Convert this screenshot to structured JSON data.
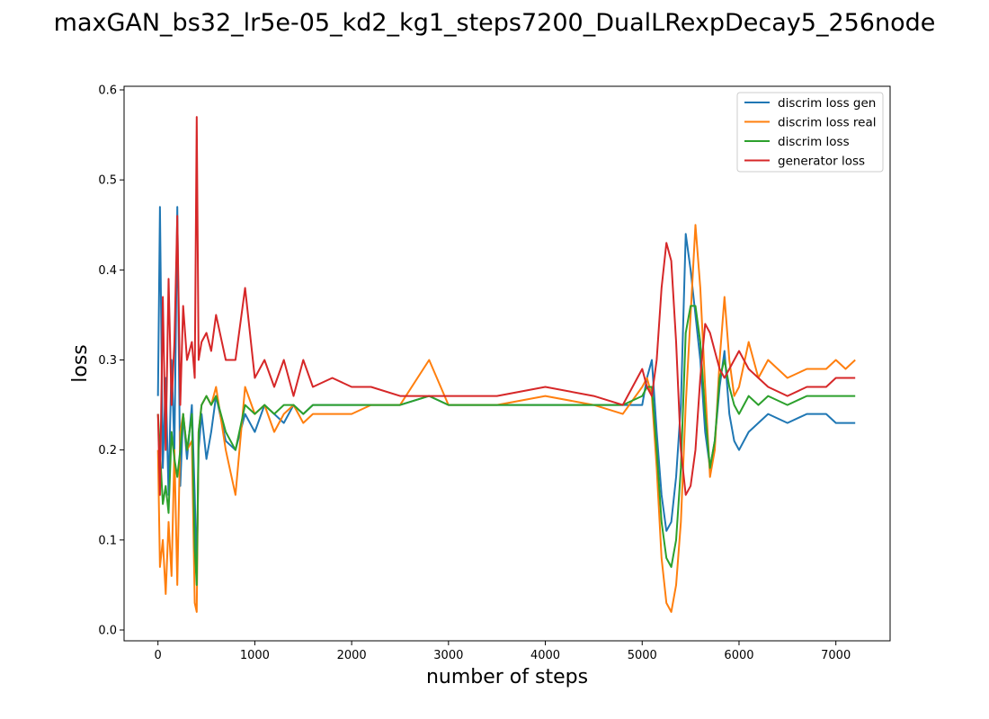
{
  "chart_data": {
    "type": "line",
    "title": "maxGAN_bs32_lr5e-05_kd2_kg1_steps7200_DualLRexpDecay5_256node",
    "xlabel": "number of steps",
    "ylabel": "loss",
    "xlim": [
      -350,
      7560
    ],
    "ylim": [
      -0.012,
      0.604
    ],
    "xticks": [
      0,
      1000,
      2000,
      3000,
      4000,
      5000,
      6000,
      7000
    ],
    "yticks": [
      0.0,
      0.1,
      0.2,
      0.3,
      0.4,
      0.5,
      0.6
    ],
    "ytick_labels": [
      "0.0",
      "0.1",
      "0.2",
      "0.3",
      "0.4",
      "0.5",
      "0.6"
    ],
    "grid": false,
    "legend_position": "top-right",
    "series": [
      {
        "name": "discrim loss gen",
        "color": "#1f77b4",
        "x": [
          0,
          20,
          50,
          80,
          110,
          140,
          170,
          200,
          230,
          260,
          300,
          350,
          380,
          400,
          420,
          450,
          500,
          550,
          600,
          700,
          800,
          900,
          1000,
          1100,
          1200,
          1300,
          1400,
          1500,
          1600,
          1800,
          2000,
          2200,
          2500,
          2800,
          3000,
          3500,
          4000,
          4500,
          4800,
          5000,
          5050,
          5100,
          5150,
          5200,
          5250,
          5300,
          5350,
          5400,
          5450,
          5500,
          5550,
          5600,
          5650,
          5700,
          5750,
          5800,
          5850,
          5900,
          5950,
          6000,
          6100,
          6200,
          6300,
          6500,
          6700,
          6900,
          7000,
          7100,
          7200
        ],
        "y": [
          0.26,
          0.47,
          0.18,
          0.28,
          0.15,
          0.3,
          0.2,
          0.47,
          0.16,
          0.24,
          0.19,
          0.25,
          0.15,
          0.06,
          0.2,
          0.24,
          0.19,
          0.22,
          0.26,
          0.21,
          0.2,
          0.24,
          0.22,
          0.25,
          0.24,
          0.23,
          0.25,
          0.24,
          0.25,
          0.25,
          0.25,
          0.25,
          0.25,
          0.26,
          0.25,
          0.25,
          0.25,
          0.25,
          0.25,
          0.25,
          0.28,
          0.3,
          0.22,
          0.15,
          0.11,
          0.12,
          0.17,
          0.25,
          0.44,
          0.4,
          0.35,
          0.3,
          0.22,
          0.18,
          0.21,
          0.27,
          0.31,
          0.24,
          0.21,
          0.2,
          0.22,
          0.23,
          0.24,
          0.23,
          0.24,
          0.24,
          0.23,
          0.23,
          0.23
        ]
      },
      {
        "name": "discrim loss real",
        "color": "#ff7f0e",
        "x": [
          0,
          20,
          50,
          80,
          110,
          140,
          170,
          200,
          230,
          260,
          300,
          350,
          380,
          400,
          420,
          450,
          500,
          550,
          600,
          700,
          800,
          900,
          1000,
          1100,
          1200,
          1300,
          1400,
          1500,
          1600,
          1800,
          2000,
          2200,
          2500,
          2800,
          3000,
          3500,
          4000,
          4500,
          4800,
          5000,
          5050,
          5100,
          5150,
          5200,
          5250,
          5300,
          5350,
          5400,
          5450,
          5500,
          5550,
          5600,
          5650,
          5700,
          5750,
          5800,
          5850,
          5900,
          5950,
          6000,
          6100,
          6200,
          6300,
          6500,
          6700,
          6900,
          7000,
          7100,
          7200
        ],
        "y": [
          0.2,
          0.07,
          0.1,
          0.04,
          0.12,
          0.06,
          0.2,
          0.05,
          0.22,
          0.24,
          0.2,
          0.21,
          0.03,
          0.02,
          0.22,
          0.25,
          0.26,
          0.25,
          0.27,
          0.2,
          0.15,
          0.27,
          0.24,
          0.25,
          0.22,
          0.24,
          0.25,
          0.23,
          0.24,
          0.24,
          0.24,
          0.25,
          0.25,
          0.3,
          0.25,
          0.25,
          0.26,
          0.25,
          0.24,
          0.27,
          0.28,
          0.26,
          0.18,
          0.08,
          0.03,
          0.02,
          0.05,
          0.12,
          0.25,
          0.35,
          0.45,
          0.38,
          0.27,
          0.17,
          0.2,
          0.3,
          0.37,
          0.3,
          0.26,
          0.27,
          0.32,
          0.28,
          0.3,
          0.28,
          0.29,
          0.29,
          0.3,
          0.29,
          0.3
        ]
      },
      {
        "name": "discrim loss",
        "color": "#2ca02c",
        "x": [
          0,
          20,
          50,
          80,
          110,
          140,
          170,
          200,
          230,
          260,
          300,
          350,
          380,
          400,
          420,
          450,
          500,
          550,
          600,
          700,
          800,
          900,
          1000,
          1100,
          1200,
          1300,
          1400,
          1500,
          1600,
          1800,
          2000,
          2200,
          2500,
          2800,
          3000,
          3500,
          4000,
          4500,
          4800,
          5000,
          5050,
          5100,
          5150,
          5200,
          5250,
          5300,
          5350,
          5400,
          5450,
          5500,
          5550,
          5600,
          5650,
          5700,
          5750,
          5800,
          5850,
          5900,
          5950,
          6000,
          6100,
          6200,
          6300,
          6500,
          6700,
          6900,
          7000,
          7100,
          7200
        ],
        "y": [
          0.24,
          0.2,
          0.14,
          0.16,
          0.13,
          0.22,
          0.19,
          0.17,
          0.2,
          0.24,
          0.2,
          0.24,
          0.09,
          0.05,
          0.22,
          0.25,
          0.26,
          0.25,
          0.26,
          0.22,
          0.2,
          0.25,
          0.24,
          0.25,
          0.24,
          0.25,
          0.25,
          0.24,
          0.25,
          0.25,
          0.25,
          0.25,
          0.25,
          0.26,
          0.25,
          0.25,
          0.25,
          0.25,
          0.25,
          0.26,
          0.27,
          0.27,
          0.2,
          0.12,
          0.08,
          0.07,
          0.1,
          0.18,
          0.33,
          0.36,
          0.36,
          0.32,
          0.24,
          0.18,
          0.21,
          0.28,
          0.3,
          0.27,
          0.25,
          0.24,
          0.26,
          0.25,
          0.26,
          0.25,
          0.26,
          0.26,
          0.26,
          0.26,
          0.26
        ]
      },
      {
        "name": "generator loss",
        "color": "#d62728",
        "x": [
          0,
          20,
          50,
          80,
          110,
          140,
          170,
          200,
          230,
          260,
          300,
          350,
          380,
          400,
          420,
          450,
          500,
          550,
          600,
          700,
          800,
          900,
          1000,
          1100,
          1200,
          1300,
          1400,
          1500,
          1600,
          1800,
          2000,
          2200,
          2500,
          2800,
          3000,
          3500,
          4000,
          4500,
          4800,
          5000,
          5050,
          5100,
          5150,
          5200,
          5250,
          5300,
          5350,
          5400,
          5450,
          5500,
          5550,
          5600,
          5650,
          5700,
          5750,
          5800,
          5850,
          5900,
          5950,
          6000,
          6100,
          6200,
          6300,
          6500,
          6700,
          6900,
          7000,
          7100,
          7200
        ],
        "y": [
          0.24,
          0.15,
          0.37,
          0.2,
          0.39,
          0.25,
          0.32,
          0.46,
          0.25,
          0.36,
          0.3,
          0.32,
          0.28,
          0.57,
          0.3,
          0.32,
          0.33,
          0.31,
          0.35,
          0.3,
          0.3,
          0.38,
          0.28,
          0.3,
          0.27,
          0.3,
          0.26,
          0.3,
          0.27,
          0.28,
          0.27,
          0.27,
          0.26,
          0.26,
          0.26,
          0.26,
          0.27,
          0.26,
          0.25,
          0.29,
          0.27,
          0.26,
          0.3,
          0.38,
          0.43,
          0.41,
          0.32,
          0.2,
          0.15,
          0.16,
          0.2,
          0.28,
          0.34,
          0.33,
          0.31,
          0.29,
          0.28,
          0.29,
          0.3,
          0.31,
          0.29,
          0.28,
          0.27,
          0.26,
          0.27,
          0.27,
          0.28,
          0.28,
          0.28
        ]
      }
    ]
  }
}
